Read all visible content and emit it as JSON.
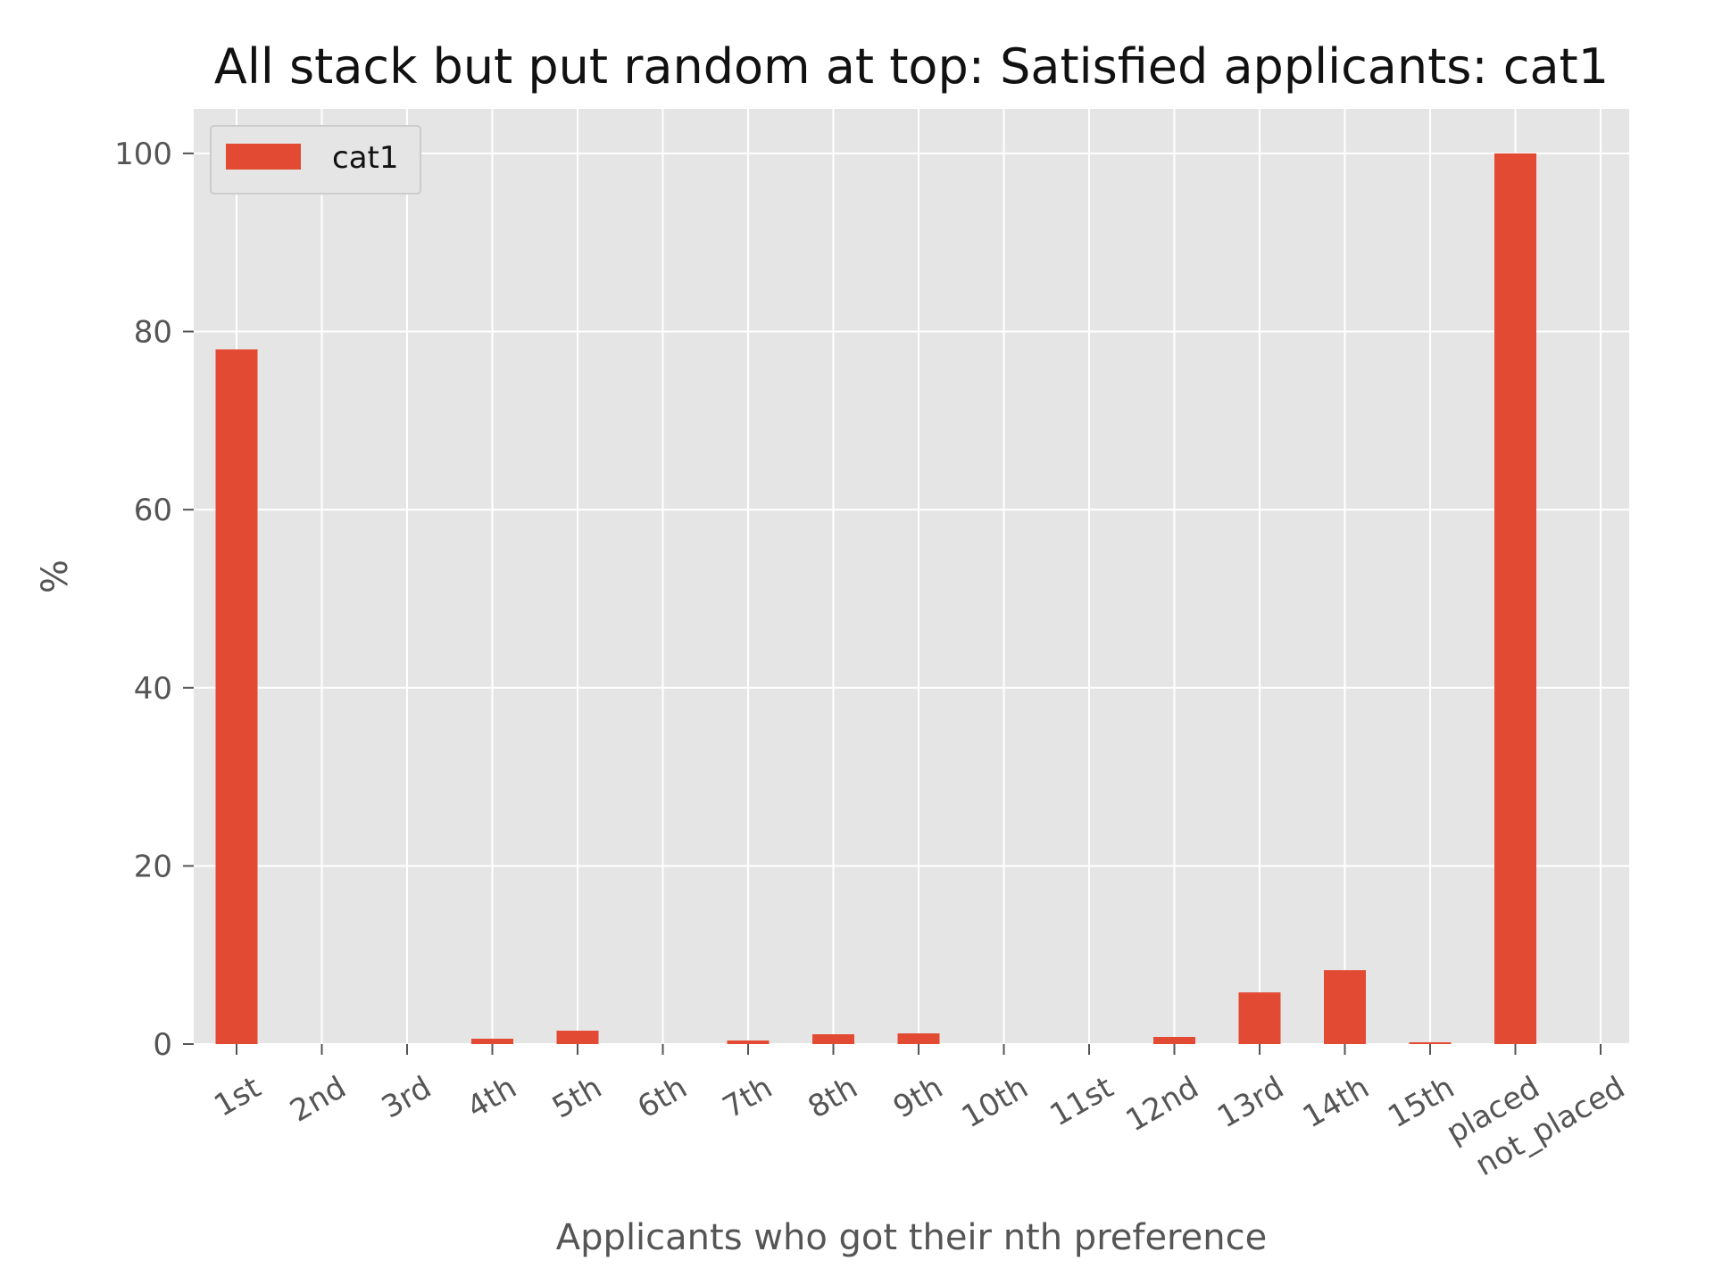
{
  "chart_data": {
    "type": "bar",
    "title": "All stack but put random at top: Satisfied applicants: cat1",
    "xlabel": "Applicants who got their nth preference",
    "ylabel": "%",
    "categories": [
      "1st",
      "2nd",
      "3rd",
      "4th",
      "5th",
      "6th",
      "7th",
      "8th",
      "9th",
      "10th",
      "11st",
      "12nd",
      "13rd",
      "14th",
      "15th",
      "placed",
      "not_placed"
    ],
    "series": [
      {
        "name": "cat1",
        "values": [
          78.0,
          0.0,
          0.0,
          0.6,
          1.5,
          0.0,
          0.4,
          1.1,
          1.2,
          0.0,
          0.0,
          0.8,
          5.8,
          8.3,
          0.2,
          100.0,
          0.0
        ]
      }
    ],
    "ylim": [
      0,
      105
    ],
    "yticks": [
      0,
      20,
      40,
      60,
      80,
      100
    ],
    "grid": true,
    "legend_position": "top-left",
    "colors": {
      "bar": "#E24A33",
      "plot_background": "#E5E5E5",
      "grid": "#FFFFFF"
    }
  }
}
